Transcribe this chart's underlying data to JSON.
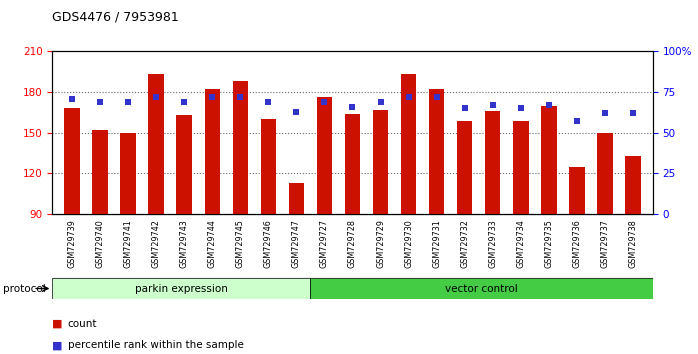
{
  "title": "GDS4476 / 7953981",
  "samples": [
    "GSM729739",
    "GSM729740",
    "GSM729741",
    "GSM729742",
    "GSM729743",
    "GSM729744",
    "GSM729745",
    "GSM729746",
    "GSM729747",
    "GSM729727",
    "GSM729728",
    "GSM729729",
    "GSM729730",
    "GSM729731",
    "GSM729732",
    "GSM729733",
    "GSM729734",
    "GSM729735",
    "GSM729736",
    "GSM729737",
    "GSM729738"
  ],
  "counts": [
    168,
    152,
    150,
    193,
    163,
    182,
    188,
    160,
    113,
    176,
    164,
    167,
    193,
    182,
    159,
    166,
    159,
    170,
    125,
    150,
    133
  ],
  "percentile_ranks": [
    71,
    69,
    69,
    72,
    69,
    72,
    72,
    69,
    63,
    69,
    66,
    69,
    72,
    72,
    65,
    67,
    65,
    67,
    57,
    62,
    62
  ],
  "parkin_count": 9,
  "vector_count": 12,
  "parkin_label": "parkin expression",
  "vector_label": "vector control",
  "protocol_label": "protocol",
  "ylim_left": [
    90,
    210
  ],
  "ylim_right": [
    0,
    100
  ],
  "yticks_left": [
    90,
    120,
    150,
    180,
    210
  ],
  "yticks_right": [
    0,
    25,
    50,
    75,
    100
  ],
  "bar_color": "#cc1100",
  "marker_color": "#3333cc",
  "parkin_bg": "#ccffcc",
  "vector_bg": "#44cc44",
  "tick_area_bg": "#cccccc",
  "bar_width": 0.55,
  "marker_size": 5,
  "grid_alpha": 0.6
}
